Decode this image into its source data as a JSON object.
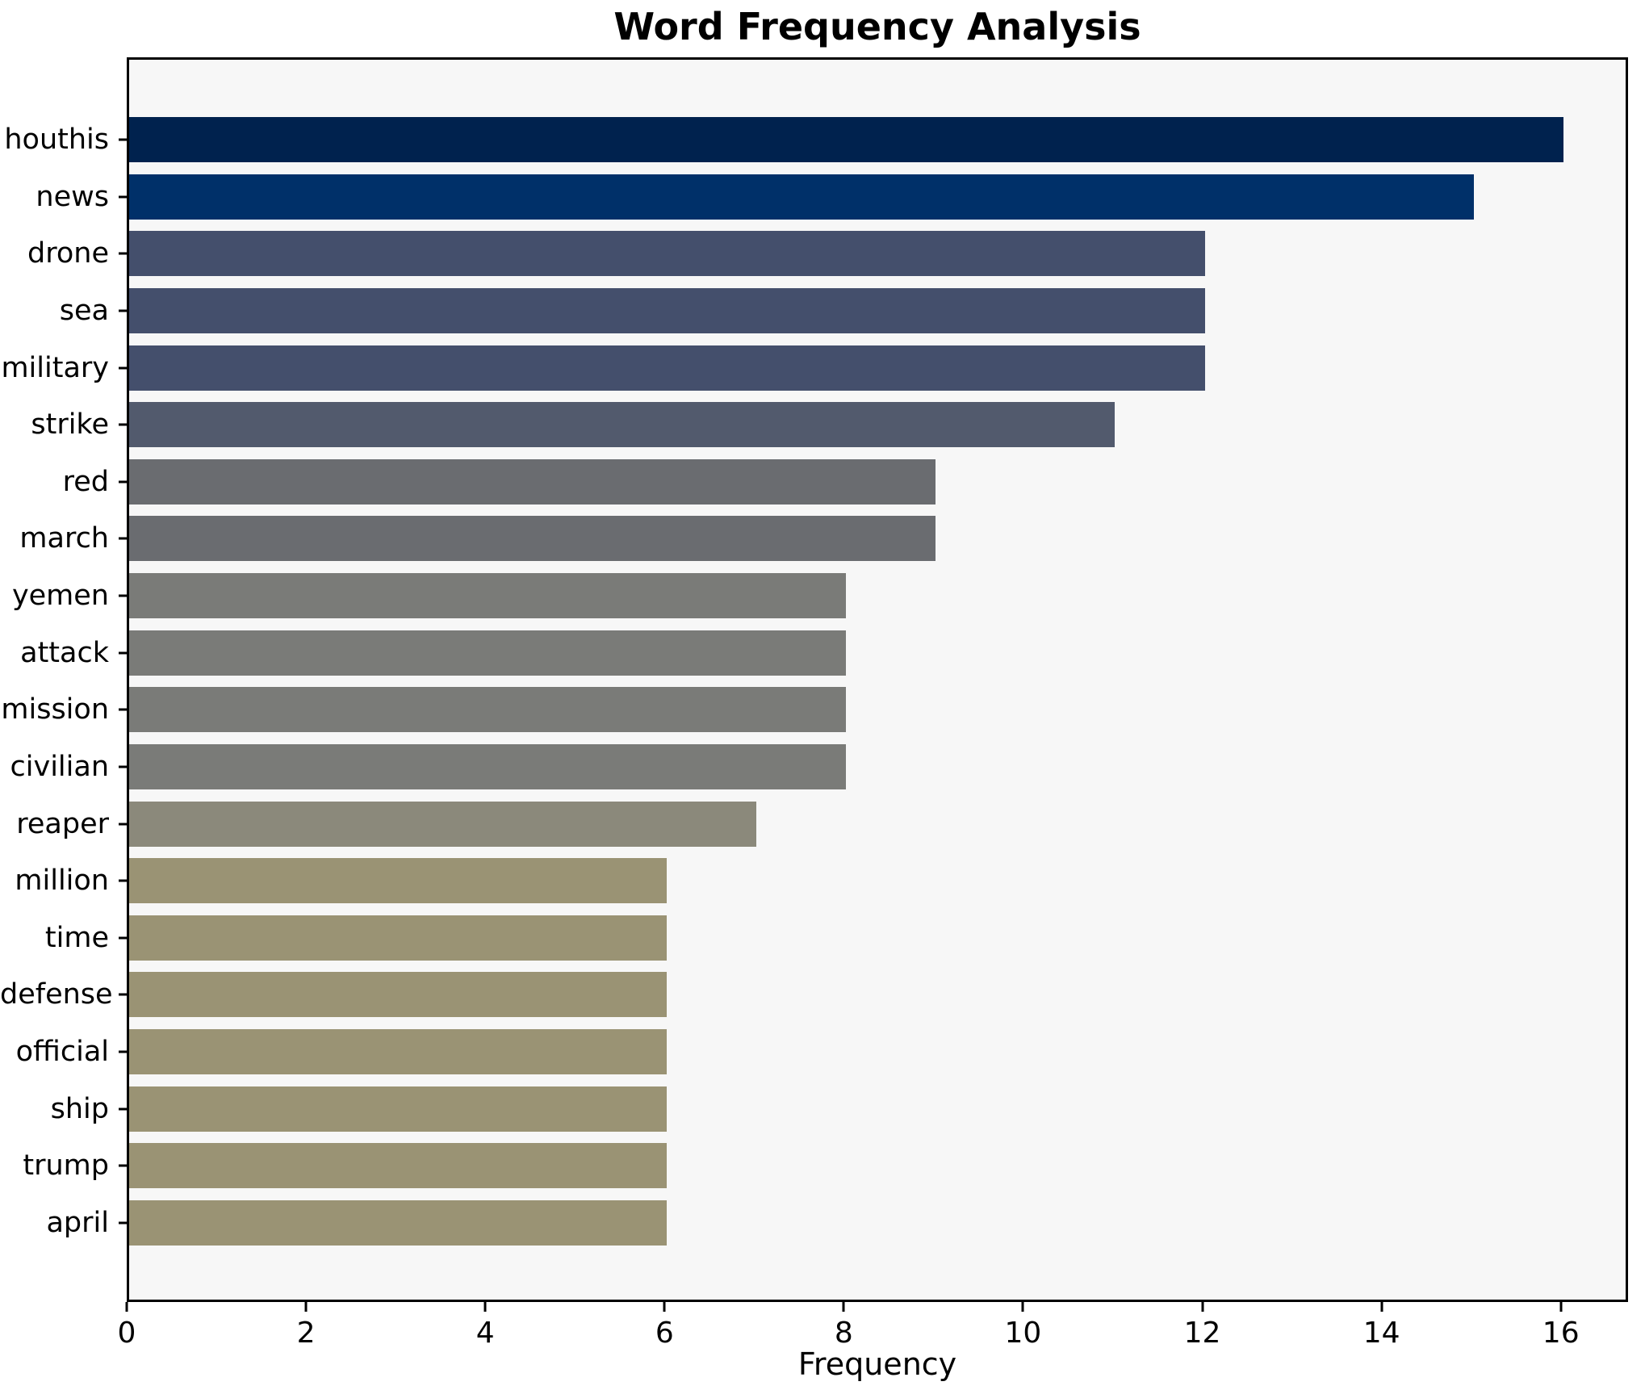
{
  "chart_data": {
    "type": "bar",
    "orientation": "horizontal",
    "title": "Word Frequency Analysis",
    "xlabel": "Frequency",
    "ylabel": "",
    "categories": [
      "houthis",
      "news",
      "drone",
      "sea",
      "military",
      "strike",
      "red",
      "march",
      "yemen",
      "attack",
      "mission",
      "civilian",
      "reaper",
      "million",
      "time",
      "defense",
      "official",
      "ship",
      "trump",
      "april"
    ],
    "values": [
      16,
      15,
      12,
      12,
      12,
      11,
      9,
      9,
      8,
      8,
      8,
      8,
      7,
      6,
      6,
      6,
      6,
      6,
      6,
      6
    ],
    "bar_colors": [
      "#00224e",
      "#003069",
      "#444f6c",
      "#444f6c",
      "#444f6c",
      "#525a6d",
      "#6a6c70",
      "#6a6c70",
      "#7a7b78",
      "#7a7b78",
      "#7a7b78",
      "#7a7b78",
      "#8b897b",
      "#9a9374",
      "#9a9374",
      "#9a9374",
      "#9a9374",
      "#9a9374",
      "#9a9374",
      "#9a9374"
    ],
    "x_ticks": [
      0,
      2,
      4,
      6,
      8,
      10,
      12,
      14,
      16
    ],
    "xlim": [
      0,
      16.75
    ],
    "grid": false,
    "legend": null,
    "plot_background": "#f7f7f7",
    "figure_background": "#ffffff"
  }
}
